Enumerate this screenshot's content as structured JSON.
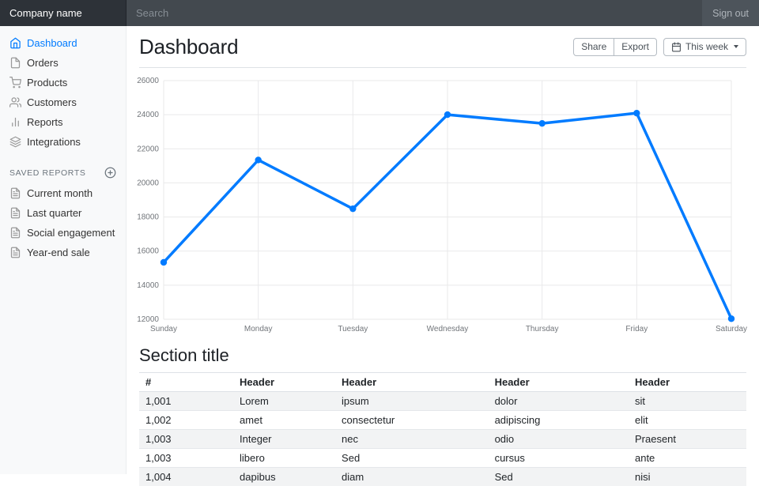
{
  "navbar": {
    "brand": "Company name",
    "search_placeholder": "Search",
    "sign_out_label": "Sign out"
  },
  "sidebar": {
    "items": [
      {
        "label": "Dashboard",
        "icon": "home-icon",
        "active": true
      },
      {
        "label": "Orders",
        "icon": "file-icon",
        "active": false
      },
      {
        "label": "Products",
        "icon": "shopping-cart-icon",
        "active": false
      },
      {
        "label": "Customers",
        "icon": "users-icon",
        "active": false
      },
      {
        "label": "Reports",
        "icon": "bar-chart-icon",
        "active": false
      },
      {
        "label": "Integrations",
        "icon": "layers-icon",
        "active": false
      }
    ],
    "saved_reports_heading": "Saved reports",
    "saved_reports": [
      {
        "label": "Current month",
        "icon": "file-text-icon"
      },
      {
        "label": "Last quarter",
        "icon": "file-text-icon"
      },
      {
        "label": "Social engagement",
        "icon": "file-text-icon"
      },
      {
        "label": "Year-end sale",
        "icon": "file-text-icon"
      }
    ]
  },
  "header": {
    "title": "Dashboard",
    "share_label": "Share",
    "export_label": "Export",
    "timeframe_label": "This week"
  },
  "chart_data": {
    "type": "line",
    "categories": [
      "Sunday",
      "Monday",
      "Tuesday",
      "Wednesday",
      "Thursday",
      "Friday",
      "Saturday"
    ],
    "values": [
      15339,
      21345,
      18483,
      24003,
      23489,
      24092,
      12034
    ],
    "title": "",
    "xlabel": "",
    "ylabel": "",
    "ylim": [
      12000,
      26000
    ],
    "ytick_step": 2000,
    "grid": true,
    "legend": false,
    "line_color": "#007bff",
    "point_color": "#007bff"
  },
  "section": {
    "title": "Section title",
    "table": {
      "columns": [
        "#",
        "Header",
        "Header",
        "Header",
        "Header"
      ],
      "rows": [
        [
          "1,001",
          "Lorem",
          "ipsum",
          "dolor",
          "sit"
        ],
        [
          "1,002",
          "amet",
          "consectetur",
          "adipiscing",
          "elit"
        ],
        [
          "1,003",
          "Integer",
          "nec",
          "odio",
          "Praesent"
        ],
        [
          "1,003",
          "libero",
          "Sed",
          "cursus",
          "ante"
        ],
        [
          "1,004",
          "dapibus",
          "diam",
          "Sed",
          "nisi"
        ]
      ]
    }
  },
  "colors": {
    "accent": "#007bff",
    "navbar_bg": "#4d545b",
    "navbar_brand_bg": "#2d3238",
    "search_bg": "#43494f",
    "sidebar_bg": "#f8f9fa",
    "grid_line": "#e9e9ea",
    "muted_text": "#6c757d"
  }
}
